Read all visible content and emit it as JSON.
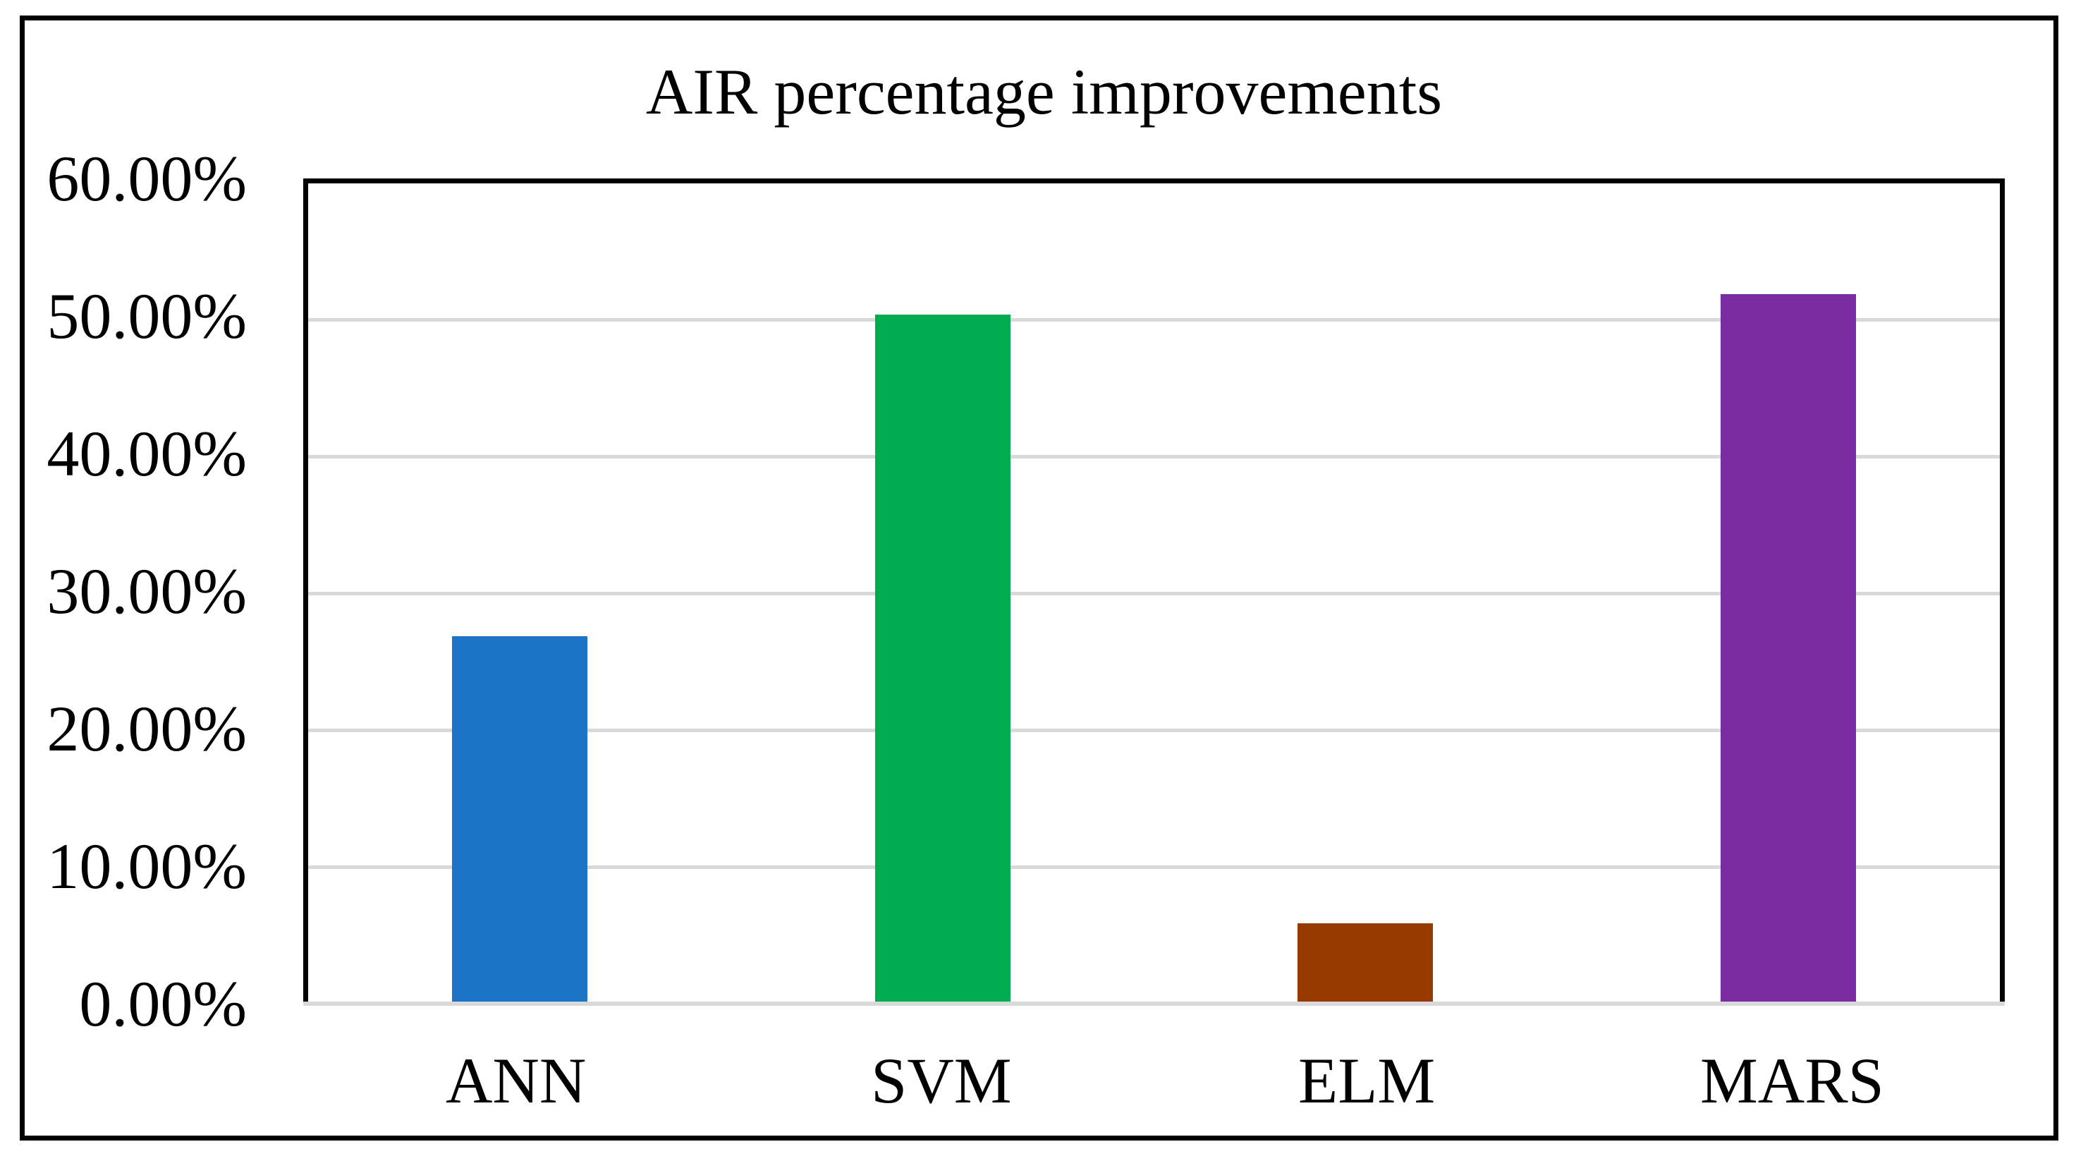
{
  "chart_data": {
    "type": "bar",
    "title": "AIR percentage improvements",
    "categories": [
      "ANN",
      "SVM",
      "ELM",
      "MARS"
    ],
    "values": [
      26.9,
      50.4,
      5.9,
      51.9
    ],
    "value_unit": "%",
    "bar_colors": [
      "#1B74C8",
      "#00AC50",
      "#963A00",
      "#7C2CA3"
    ],
    "ylim": [
      0,
      60
    ],
    "ytick_step": 10,
    "ytick_labels": [
      "0.00%",
      "10.00%",
      "20.00%",
      "30.00%",
      "40.00%",
      "50.00%",
      "60.00%"
    ],
    "xlabel": "",
    "ylabel": "",
    "grid": "horizontal",
    "gridline_color": "#D9D9D9",
    "axis_border_color": "#000000",
    "legend": "none",
    "text_color": "#000000",
    "background_color": "#FFFFFF"
  }
}
